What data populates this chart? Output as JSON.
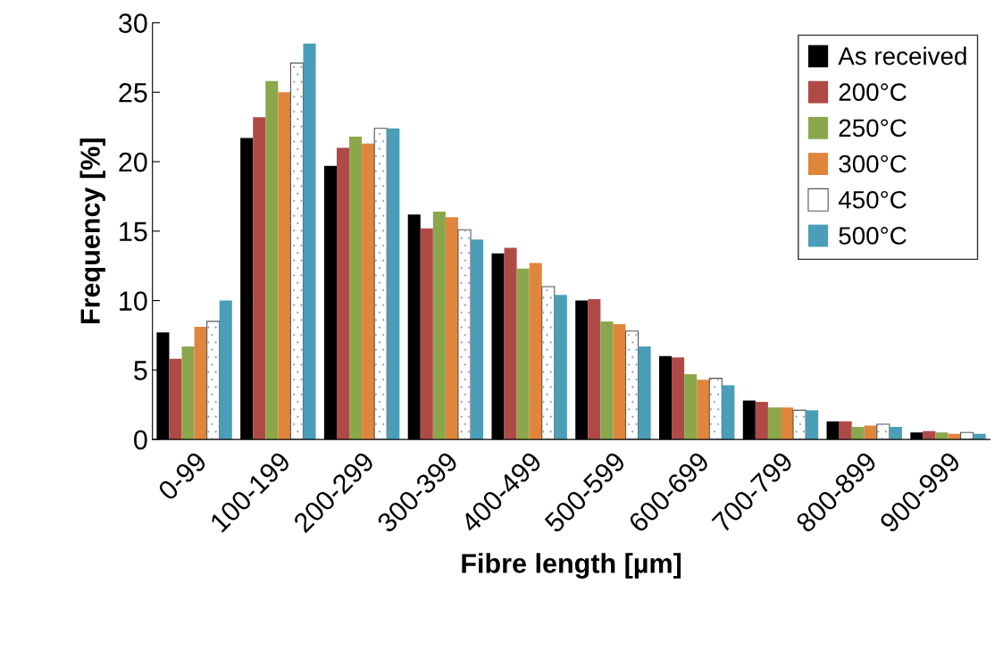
{
  "chart_data": {
    "type": "bar",
    "xlabel": "Fibre length [µm]",
    "ylabel": "Frequency [%]",
    "categories": [
      "0-99",
      "100-199",
      "200-299",
      "300-399",
      "400-499",
      "500-599",
      "600-699",
      "700-799",
      "800-899",
      "900-999"
    ],
    "series": [
      {
        "name": "As received",
        "color": "#000000",
        "values": [
          7.7,
          21.7,
          19.7,
          16.2,
          13.4,
          10.0,
          6.0,
          2.8,
          1.3,
          0.5
        ]
      },
      {
        "name": "200°C",
        "color": "#b04a47",
        "values": [
          5.8,
          23.2,
          21.0,
          15.2,
          13.8,
          10.1,
          5.9,
          2.7,
          1.3,
          0.6
        ]
      },
      {
        "name": "250°C",
        "color": "#8aa84b",
        "values": [
          6.7,
          25.8,
          21.8,
          16.4,
          12.3,
          8.5,
          4.7,
          2.3,
          0.9,
          0.5
        ]
      },
      {
        "name": "300°C",
        "color": "#e0863c",
        "values": [
          8.1,
          25.0,
          21.3,
          16.0,
          12.7,
          8.3,
          4.3,
          2.3,
          1.0,
          0.4
        ]
      },
      {
        "name": "450°C",
        "color": "#ffffff",
        "values": [
          8.5,
          27.1,
          22.4,
          15.1,
          11.0,
          7.8,
          4.4,
          2.1,
          1.1,
          0.5
        ]
      },
      {
        "name": "500°C",
        "color": "#4a9eb8",
        "values": [
          10.0,
          28.5,
          22.4,
          14.4,
          10.4,
          6.7,
          3.9,
          2.1,
          0.9,
          0.4
        ]
      }
    ],
    "ylim": [
      0,
      30
    ],
    "yticks": [
      0,
      5,
      10,
      15,
      20,
      25,
      30
    ],
    "grid": false,
    "legend": "top right"
  }
}
